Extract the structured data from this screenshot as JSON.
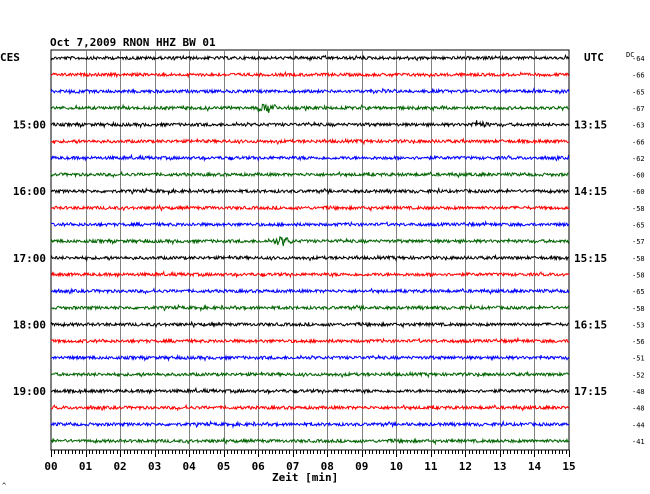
{
  "chart_data": {
    "type": "line",
    "title": "Oct 7,2009   RNON HHZ BW 01",
    "left_label": "CES",
    "right_label": "UTC",
    "dc_label": "DC",
    "xlabel": "Zeit [min]",
    "xlim": [
      0,
      15
    ],
    "x_ticks": [
      "00",
      "01",
      "02",
      "03",
      "04",
      "05",
      "06",
      "07",
      "08",
      "09",
      "10",
      "11",
      "12",
      "13",
      "14",
      "15"
    ],
    "left_hour_labels": [
      {
        "text": "15:00",
        "row": 4
      },
      {
        "text": "16:00",
        "row": 8
      },
      {
        "text": "17:00",
        "row": 12
      },
      {
        "text": "18:00",
        "row": 16
      },
      {
        "text": "19:00",
        "row": 20
      }
    ],
    "right_hour_labels": [
      {
        "text": "13:15",
        "row": 4
      },
      {
        "text": "14:15",
        "row": 8
      },
      {
        "text": "15:15",
        "row": 12
      },
      {
        "text": "16:15",
        "row": 16
      },
      {
        "text": "17:15",
        "row": 20
      }
    ],
    "dc_offsets": [
      "-64",
      "-66",
      "-65",
      "-67",
      "-63",
      "-66",
      "-62",
      "-60",
      "-60",
      "-58",
      "-65",
      "-57",
      "-58",
      "-58",
      "-65",
      "-58",
      "-53",
      "-56",
      "-51",
      "-52",
      "-48",
      "-48",
      "-44",
      "-41"
    ],
    "trace_colors": [
      "#000000",
      "#ff0000",
      "#0000ff",
      "#006400"
    ],
    "events": [
      {
        "row": 3,
        "minute": 6.3,
        "amplitude": 2.2
      },
      {
        "row": 11,
        "minute": 6.7,
        "amplitude": 2.0
      },
      {
        "row": 4,
        "minute": 12.4,
        "amplitude": 1.2
      }
    ],
    "grid": true,
    "footnote": "^"
  }
}
